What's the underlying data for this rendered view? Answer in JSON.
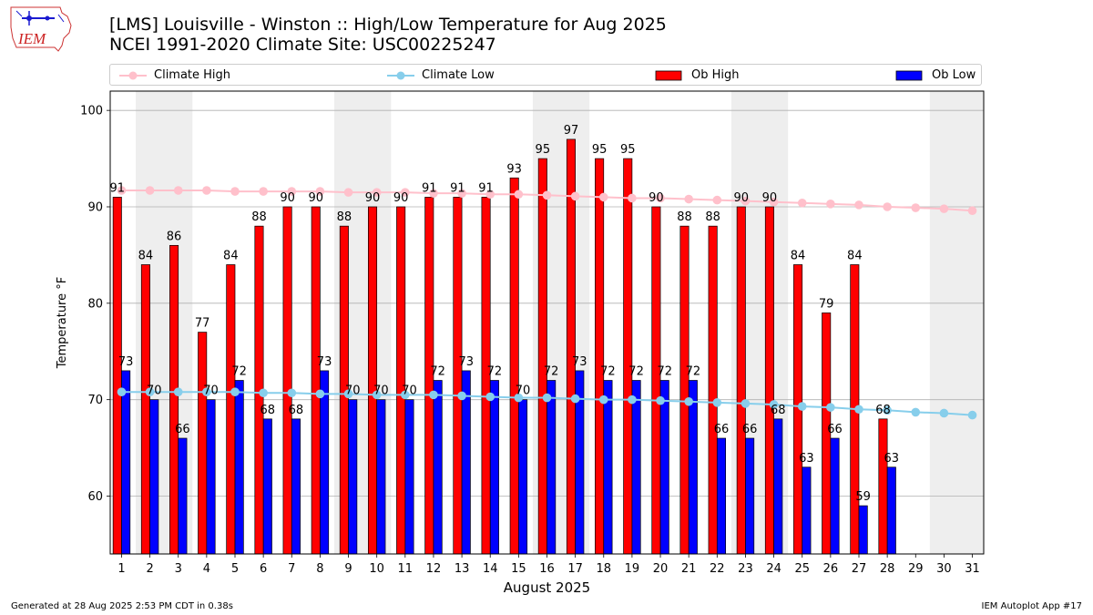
{
  "header": {
    "title_line1": "[LMS] Louisville - Winston :: High/Low Temperature for Aug 2025",
    "title_line2": "NCEI 1991-2020 Climate Site: USC00225247",
    "logo_text": "IEM"
  },
  "footer": {
    "generated": "Generated at 28 Aug 2025 2:53 PM CDT in 0.38s",
    "app": "IEM Autoplot App #17"
  },
  "legend": {
    "climate_high": "Climate High",
    "climate_low": "Climate Low",
    "ob_high": "Ob High",
    "ob_low": "Ob Low"
  },
  "colors": {
    "ob_high": "#ff0000",
    "ob_low": "#0000ff",
    "climate_high": "#ffc0cb",
    "climate_low": "#87ceeb",
    "weekend_shade": "#eeeeee",
    "grid": "#b0b0b0"
  },
  "chart_data": {
    "type": "bar",
    "xlabel": "August 2025",
    "ylabel": "Temperature °F",
    "ylim": [
      54,
      102
    ],
    "yticks": [
      60,
      70,
      80,
      90,
      100
    ],
    "grid": "horizontal",
    "legend_position": "top",
    "categories": [
      "1",
      "2",
      "3",
      "4",
      "5",
      "6",
      "7",
      "8",
      "9",
      "10",
      "11",
      "12",
      "13",
      "14",
      "15",
      "16",
      "17",
      "18",
      "19",
      "20",
      "21",
      "22",
      "23",
      "24",
      "25",
      "26",
      "27",
      "28",
      "29",
      "30",
      "31"
    ],
    "weekend_shaded_days": [
      [
        2,
        3
      ],
      [
        9,
        10
      ],
      [
        16,
        17
      ],
      [
        23,
        24
      ],
      [
        30,
        31
      ]
    ],
    "series": [
      {
        "name": "Ob High",
        "kind": "bar",
        "values": [
          91,
          84,
          86,
          77,
          84,
          88,
          90,
          90,
          88,
          90,
          90,
          91,
          91,
          91,
          93,
          95,
          97,
          95,
          95,
          90,
          88,
          88,
          90,
          90,
          84,
          79,
          84,
          68,
          null,
          null,
          null
        ]
      },
      {
        "name": "Ob Low",
        "kind": "bar",
        "values": [
          73,
          70,
          66,
          70,
          72,
          68,
          68,
          73,
          70,
          70,
          70,
          72,
          73,
          72,
          70,
          72,
          73,
          72,
          72,
          72,
          72,
          66,
          66,
          68,
          63,
          66,
          59,
          63,
          null,
          null,
          null
        ]
      },
      {
        "name": "Climate High",
        "kind": "line",
        "values": [
          91.7,
          91.7,
          91.7,
          91.7,
          91.6,
          91.6,
          91.6,
          91.6,
          91.5,
          91.5,
          91.5,
          91.4,
          91.4,
          91.3,
          91.3,
          91.2,
          91.1,
          91.0,
          90.9,
          90.9,
          90.8,
          90.7,
          90.6,
          90.5,
          90.4,
          90.3,
          90.2,
          90.0,
          89.9,
          89.8,
          89.6
        ]
      },
      {
        "name": "Climate Low",
        "kind": "line",
        "values": [
          70.8,
          70.8,
          70.8,
          70.8,
          70.8,
          70.7,
          70.7,
          70.6,
          70.6,
          70.5,
          70.5,
          70.5,
          70.4,
          70.3,
          70.2,
          70.2,
          70.1,
          70.0,
          70.0,
          69.9,
          69.8,
          69.7,
          69.6,
          69.5,
          69.3,
          69.2,
          69.0,
          68.9,
          68.7,
          68.6,
          68.4
        ]
      }
    ]
  }
}
